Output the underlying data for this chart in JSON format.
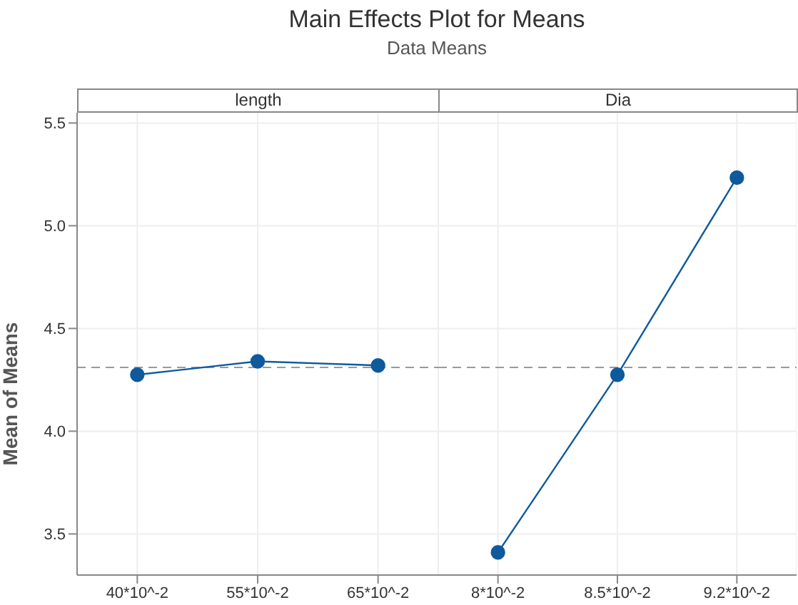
{
  "chart_data": [
    {
      "type": "line",
      "title": "length",
      "annotations": [
        "Main Effects Plot for Means",
        "Data Means"
      ],
      "ylabel": "Mean of Means",
      "categories": [
        "40*10^-2",
        "55*10^-2",
        "65*10^-2"
      ],
      "values": [
        4.275,
        4.34,
        4.32
      ],
      "color": "#0e5a9c",
      "ylim": [
        3.3,
        5.55
      ],
      "yticks": [
        3.5,
        {
          "value": 4,
          "label": "4.0"
        },
        4.5,
        {
          "value": 5,
          "label": "5.0"
        },
        5.5
      ],
      "grid": true,
      "marker": "circle",
      "ref_lines": [
        {
          "axis": "y",
          "value": 4.31,
          "color": "#999999",
          "line_style": "dashed"
        }
      ]
    },
    {
      "type": "line",
      "title": "Dia",
      "categories": [
        "8*10^-2",
        "8.5*10^-2",
        "9.2*10^-2"
      ],
      "values": [
        3.41,
        4.275,
        5.234
      ],
      "color": "#0e5a9c",
      "ylim": [
        3.3,
        5.55
      ],
      "yticks": [
        3.5,
        4,
        4.5,
        5,
        5.5
      ],
      "tick_labels": "x",
      "grid": true,
      "marker": "circle",
      "ref_lines": [
        {
          "axis": "y",
          "value": 4.31,
          "color": "#999999",
          "line_style": "dashed"
        }
      ]
    }
  ]
}
